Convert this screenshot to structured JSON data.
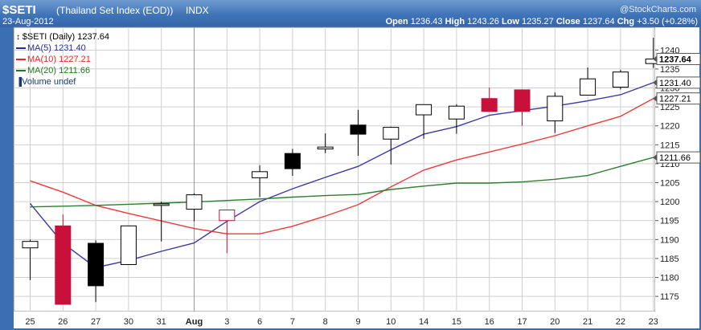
{
  "header": {
    "symbol": "$SETI",
    "index_name": "(Thailand Set Index (EOD))",
    "exchange": "INDX",
    "date": "23-Aug-2012",
    "watermark": "@StockCharts.com",
    "open_label": "Open",
    "open": "1236.43",
    "high_label": "High",
    "high": "1243.26",
    "low_label": "Low",
    "low": "1235.27",
    "close_label": "Close",
    "close": "1237.64",
    "chg_label": "Chg",
    "chg": "+3.50 (+0.28%)"
  },
  "legend": [
    {
      "text": "$SETI (Daily) 1237.64",
      "color": "#000000"
    },
    {
      "text": "MA(5) 1231.40",
      "color": "#2b2b99"
    },
    {
      "text": "MA(10) 1227.21",
      "color": "#ee2222"
    },
    {
      "text": "MA(20) 1211.66",
      "color": "#227722"
    },
    {
      "text": "Volume undef",
      "color": "#1a3a77"
    }
  ],
  "colors": {
    "up_candle_fill": "#ffffff",
    "down_candle_fill": "#000000",
    "red_candle_fill": "#c8103a",
    "ma5": "#3a3aa8",
    "ma10": "#f03a3a",
    "ma20": "#2e7d2e",
    "grid": "#cfcfcf",
    "frame": "#3a6fb3"
  },
  "chart_data": {
    "type": "candlestick",
    "title": "$SETI (Thailand Set Index (EOD)) INDX",
    "categories": [
      "25",
      "26",
      "27",
      "30",
      "31",
      "Aug",
      "3",
      "6",
      "7",
      "8",
      "9",
      "10",
      "14",
      "15",
      "16",
      "17",
      "20",
      "21",
      "22",
      "23"
    ],
    "ylim": [
      1171,
      1246
    ],
    "y_ticks": [
      1175,
      1180,
      1185,
      1190,
      1195,
      1200,
      1205,
      1210,
      1215,
      1220,
      1225,
      1230,
      1235,
      1240
    ],
    "grid": true,
    "candles": [
      {
        "o": 1187.8,
        "h": 1190.0,
        "l": 1179.3,
        "c": 1189.5,
        "style": "hollow"
      },
      {
        "o": 1193.6,
        "h": 1196.6,
        "l": 1172.9,
        "c": 1172.9,
        "style": "red"
      },
      {
        "o": 1189.0,
        "h": 1189.8,
        "l": 1173.5,
        "c": 1177.8,
        "style": "black"
      },
      {
        "o": 1183.4,
        "h": 1193.6,
        "l": 1183.4,
        "c": 1193.6,
        "style": "hollow"
      },
      {
        "o": 1199.0,
        "h": 1200.0,
        "l": 1189.5,
        "c": 1199.4,
        "style": "hollow"
      },
      {
        "o": 1198.0,
        "h": 1202.2,
        "l": 1194.8,
        "c": 1201.8,
        "style": "hollow"
      },
      {
        "o": 1197.8,
        "h": 1197.8,
        "l": 1186.4,
        "c": 1195.0,
        "style": "red-hollow"
      },
      {
        "o": 1206.3,
        "h": 1209.6,
        "l": 1201.2,
        "c": 1207.9,
        "style": "hollow"
      },
      {
        "o": 1212.7,
        "h": 1213.9,
        "l": 1206.8,
        "c": 1208.7,
        "style": "black"
      },
      {
        "o": 1213.9,
        "h": 1218.0,
        "l": 1212.8,
        "c": 1214.4,
        "style": "hollow"
      },
      {
        "o": 1220.2,
        "h": 1224.2,
        "l": 1212.1,
        "c": 1217.8,
        "style": "black"
      },
      {
        "o": 1216.5,
        "h": 1219.8,
        "l": 1209.8,
        "c": 1219.6,
        "style": "hollow"
      },
      {
        "o": 1222.9,
        "h": 1225.6,
        "l": 1216.6,
        "c": 1225.6,
        "style": "hollow"
      },
      {
        "o": 1221.8,
        "h": 1225.7,
        "l": 1217.9,
        "c": 1225.2,
        "style": "hollow"
      },
      {
        "o": 1227.2,
        "h": 1230.1,
        "l": 1223.8,
        "c": 1223.8,
        "style": "red"
      },
      {
        "o": 1229.5,
        "h": 1229.5,
        "l": 1220.0,
        "c": 1223.8,
        "style": "red"
      },
      {
        "o": 1221.3,
        "h": 1228.8,
        "l": 1218.1,
        "c": 1227.8,
        "style": "hollow"
      },
      {
        "o": 1228.1,
        "h": 1235.4,
        "l": 1228.1,
        "c": 1232.4,
        "style": "hollow"
      },
      {
        "o": 1230.2,
        "h": 1234.8,
        "l": 1229.6,
        "c": 1234.2,
        "style": "hollow"
      },
      {
        "o": 1236.43,
        "h": 1243.26,
        "l": 1235.27,
        "c": 1237.64,
        "style": "hollow"
      }
    ],
    "series": [
      {
        "name": "MA(5) 1231.40",
        "values": [
          1199.5,
          1189.0,
          1182.6,
          1184.5,
          1186.9,
          1189.1,
          1194.8,
          1200.0,
          1203.4,
          1206.4,
          1209.3,
          1213.7,
          1217.8,
          1219.8,
          1222.8,
          1224.0,
          1225.2,
          1226.6,
          1228.2,
          1231.4
        ]
      },
      {
        "name": "MA(10) 1227.21",
        "values": [
          1205.5,
          1202.5,
          1199.0,
          1196.9,
          1194.9,
          1192.9,
          1191.5,
          1191.5,
          1193.5,
          1196.2,
          1199.2,
          1203.9,
          1208.3,
          1211.0,
          1213.1,
          1215.2,
          1217.4,
          1220.0,
          1222.5,
          1227.2
        ]
      },
      {
        "name": "MA(20) 1211.66",
        "values": [
          1198.6,
          1198.8,
          1199.0,
          1199.3,
          1199.6,
          1199.9,
          1200.3,
          1200.7,
          1201.2,
          1201.6,
          1201.9,
          1203.2,
          1204.1,
          1204.9,
          1204.9,
          1205.2,
          1205.9,
          1206.9,
          1209.3,
          1211.66
        ]
      }
    ],
    "right_axis_labels": [
      {
        "value": 1237.64,
        "text": "1237.64",
        "highlight": true
      },
      {
        "value": 1231.4,
        "text": "1231.40",
        "highlight": false
      },
      {
        "value": 1227.21,
        "text": "1227.21",
        "highlight": false
      },
      {
        "value": 1211.66,
        "text": "1211.66",
        "highlight": false
      }
    ]
  }
}
